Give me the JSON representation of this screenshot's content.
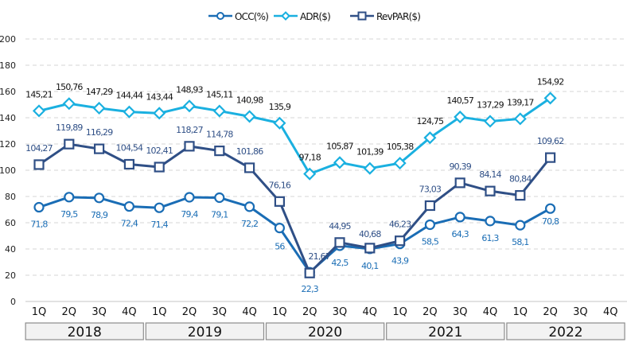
{
  "chart_data": {
    "type": "line",
    "title": "",
    "xlabel": "",
    "ylabel": "",
    "ylim": [
      0,
      200
    ],
    "yticks": [
      0,
      20,
      40,
      60,
      80,
      100,
      120,
      140,
      160,
      180,
      200
    ],
    "grid": true,
    "legend_position": "top-center",
    "categories": [
      "1Q",
      "2Q",
      "3Q",
      "4Q",
      "1Q",
      "2Q",
      "3Q",
      "4Q",
      "1Q",
      "2Q",
      "3Q",
      "4Q",
      "1Q",
      "2Q",
      "3Q",
      "4Q",
      "1Q",
      "2Q",
      "3Q",
      "4Q"
    ],
    "groups": [
      {
        "label": "2018",
        "count": 4
      },
      {
        "label": "2019",
        "count": 4
      },
      {
        "label": "2020",
        "count": 4
      },
      {
        "label": "2021",
        "count": 4
      },
      {
        "label": "2022",
        "count": 4
      }
    ],
    "series": [
      {
        "name": "OCC(%)",
        "color": "#1a6db5",
        "marker": "circle",
        "values": [
          71.8,
          79.5,
          78.9,
          72.4,
          71.4,
          79.4,
          79.1,
          72.2,
          56,
          22.3,
          42.5,
          40.1,
          43.9,
          58.5,
          64.3,
          61.3,
          58.1,
          70.8,
          null,
          null
        ],
        "labels": [
          "71,8",
          "79,5",
          "78,9",
          "72,4",
          "71,4",
          "79,4",
          "79,1",
          "72,2",
          "56",
          "22,3",
          "42,5",
          "40,1",
          "43,9",
          "58,5",
          "64,3",
          "61,3",
          "58,1",
          "70,8",
          null,
          null
        ],
        "label_color": "#1a6db5"
      },
      {
        "name": "ADR($)",
        "color": "#1ab0e0",
        "marker": "diamond",
        "values": [
          145.21,
          150.76,
          147.29,
          144.44,
          143.44,
          148.93,
          145.11,
          140.98,
          135.9,
          97.18,
          105.87,
          101.39,
          105.38,
          124.75,
          140.57,
          137.29,
          139.17,
          154.92,
          null,
          null
        ],
        "labels": [
          "145,21",
          "150,76",
          "147,29",
          "144,44",
          "143,44",
          "148,93",
          "145,11",
          "140,98",
          "135,9",
          "97,18",
          "105,87",
          "101,39",
          "105,38",
          "124,75",
          "140,57",
          "137,29",
          "139,17",
          "154,92",
          null,
          null
        ],
        "label_color": "#111111"
      },
      {
        "name": "RevPAR($)",
        "color": "#2f4f86",
        "marker": "square",
        "values": [
          104.27,
          119.89,
          116.29,
          104.54,
          102.41,
          118.27,
          114.78,
          101.86,
          76.16,
          21.67,
          44.95,
          40.68,
          46.23,
          73.03,
          90.39,
          84.14,
          80.84,
          109.62,
          null,
          null
        ],
        "labels": [
          "104,27",
          "119,89",
          "116,29",
          "104,54",
          "102,41",
          "118,27",
          "114,78",
          "101,86",
          "76,16",
          "21,67",
          "44,95",
          "40,68",
          "46,23",
          "73,03",
          "90,39",
          "84,14",
          "80,84",
          "109,62",
          null,
          null
        ],
        "label_color": "#2f4f86"
      }
    ]
  }
}
